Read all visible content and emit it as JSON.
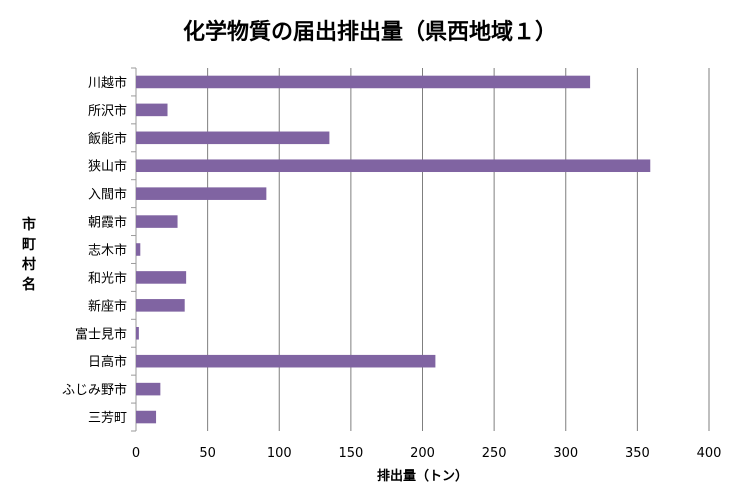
{
  "chart_data": {
    "type": "bar",
    "orientation": "horizontal",
    "title": "化学物質の届出排出量（県西地域１）",
    "xlabel": "排出量（トン）",
    "ylabel": "市町村名",
    "xlim": [
      0,
      400
    ],
    "xticks": [
      0,
      50,
      100,
      150,
      200,
      250,
      300,
      350,
      400
    ],
    "grid": true,
    "bar_color": "#8064a2",
    "categories": [
      "川越市",
      "所沢市",
      "飯能市",
      "狭山市",
      "入間市",
      "朝霞市",
      "志木市",
      "和光市",
      "新座市",
      "富士見市",
      "日高市",
      "ふじみ野市",
      "三芳町"
    ],
    "values": [
      317,
      22,
      135,
      359,
      91,
      29,
      3,
      35,
      34,
      2,
      209,
      17,
      14
    ]
  }
}
